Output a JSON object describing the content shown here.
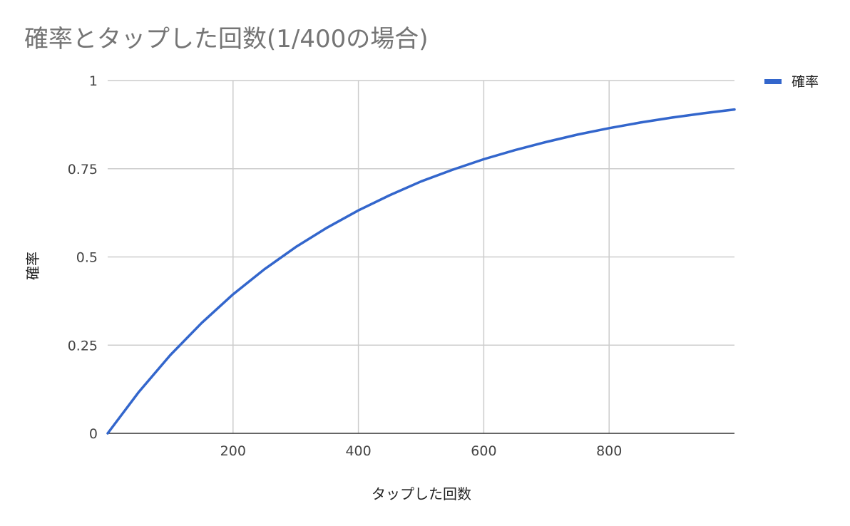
{
  "chart_data": {
    "type": "line",
    "title": "確率とタップした回数(1/400の場合)",
    "xlabel": "タップした回数",
    "ylabel": "確率",
    "xlim": [
      0,
      1000
    ],
    "ylim": [
      0,
      1
    ],
    "x_ticks": [
      200,
      400,
      600,
      800
    ],
    "x_tick_labels": [
      "200",
      "400",
      "600",
      "800"
    ],
    "y_ticks": [
      0,
      0.25,
      0.5,
      0.75,
      1
    ],
    "y_tick_labels": [
      "0",
      "0.25",
      "0.5",
      "0.75",
      "1"
    ],
    "grid": true,
    "legend_position": "top-right",
    "series": [
      {
        "name": "確率",
        "color": "#3366cc",
        "x": [
          0,
          50,
          100,
          150,
          200,
          250,
          300,
          350,
          400,
          450,
          500,
          550,
          600,
          650,
          700,
          750,
          800,
          850,
          900,
          950,
          1000
        ],
        "y": [
          0,
          0.118,
          0.222,
          0.313,
          0.394,
          0.465,
          0.528,
          0.583,
          0.632,
          0.675,
          0.714,
          0.747,
          0.777,
          0.803,
          0.826,
          0.847,
          0.865,
          0.881,
          0.895,
          0.907,
          0.918
        ]
      }
    ]
  }
}
